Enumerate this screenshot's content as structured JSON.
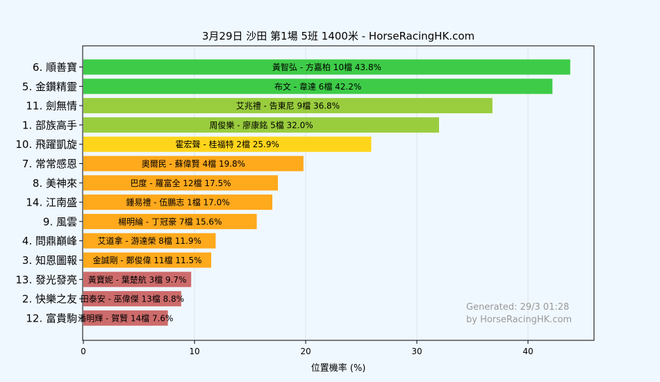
{
  "chart_data": {
    "type": "bar",
    "orientation": "horizontal",
    "title": "3月29日  沙田  第1場  5班  1400米 - HorseRacingHK.com",
    "xlabel": "位置機率 (%)",
    "ylabel": "",
    "xlim": [
      0,
      46
    ],
    "xticks": [
      0,
      10,
      20,
      30,
      40
    ],
    "grid": true,
    "categories": [
      "6. 順善寶",
      "5. 金鑽精靈",
      "11. 劍無情",
      "1. 部族高手",
      "10. 飛躍凱旋",
      "7. 常常感恩",
      "8. 美神來",
      "14. 江南盛",
      "9. 風雲",
      "4. 問鼎巔峰",
      "3. 知恩圖報",
      "13. 發光發亮",
      "2. 快樂之友",
      "12. 富貴駒"
    ],
    "values": [
      43.8,
      42.2,
      36.8,
      32.0,
      25.9,
      19.8,
      17.5,
      17.0,
      15.6,
      11.9,
      11.5,
      9.7,
      8.8,
      7.6
    ],
    "bar_labels": [
      "黃智弘 - 方嘉柏 10檔  43.8%",
      "布文 - 韋達 6檔  42.2%",
      "艾兆禮 - 告東尼 9檔  36.8%",
      "周俊樂 - 廖康銘 5檔  32.0%",
      "霍宏聲 - 桂福特 2檔  25.9%",
      "奧爾民 - 蘇偉賢 4檔  19.8%",
      "巴度 - 羅富全 12檔  17.5%",
      "鍾易禮 - 伍鵬志 1檔  17.0%",
      "楊明綸 - 丁冠豪 7檔  15.6%",
      "艾道拿 - 游達榮 8檔  11.9%",
      "金誠剛 - 鄭俊偉 11檔  11.5%",
      "黃寶妮 - 葉楚航 3檔  9.7%",
      "田泰安 - 巫偉傑 13檔  8.8%",
      "潘明輝 - 賀賢 14檔  7.6%"
    ],
    "colors": [
      "#3ecc48",
      "#3ecc48",
      "#9acd3e",
      "#9acd3e",
      "#ffd51c",
      "#ffa91c",
      "#ffa91c",
      "#ffa91c",
      "#ffa91c",
      "#ffa91c",
      "#ffa91c",
      "#cd6b6b",
      "#cd6b6b",
      "#cd6b6b"
    ],
    "watermark": [
      "Generated: 29/3 01:28",
      "by HorseRacingHK.com"
    ]
  }
}
